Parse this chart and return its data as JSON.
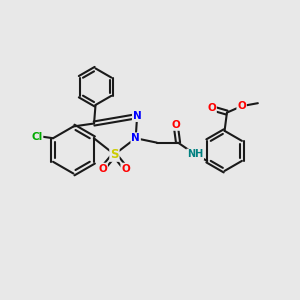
{
  "background_color": "#e8e8e8",
  "bond_color": "#1a1a1a",
  "lw": 1.5,
  "atom_colors": {
    "Cl": "#00aa00",
    "N": "#0000ff",
    "S": "#cccc00",
    "O": "#ff0000",
    "NH": "#008080",
    "C": "#1a1a1a"
  },
  "figsize": [
    3.0,
    3.0
  ],
  "dpi": 100,
  "xlim": [
    0,
    10
  ],
  "ylim": [
    0,
    10
  ]
}
